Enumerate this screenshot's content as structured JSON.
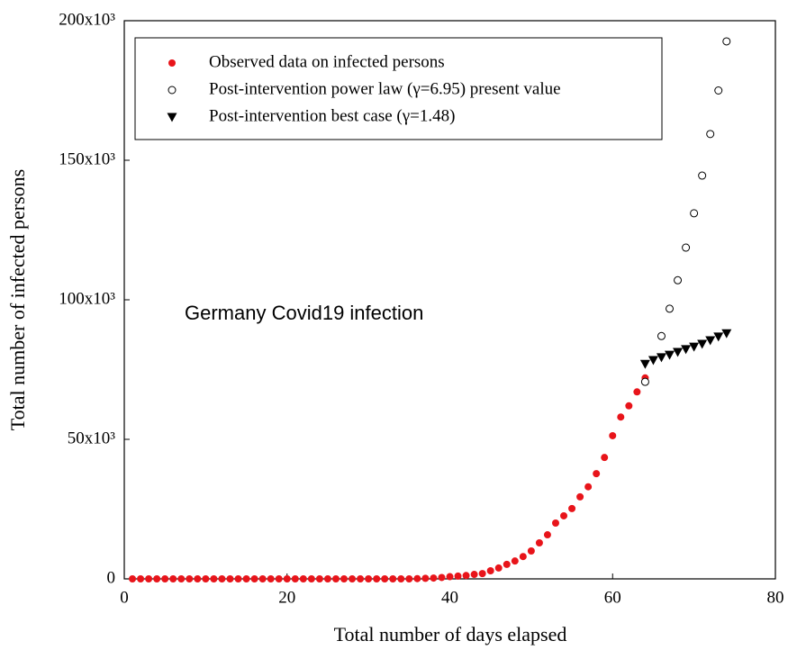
{
  "chart_data": {
    "type": "scatter",
    "xlabel": "Total number of days elapsed",
    "ylabel": "Total number of infected persons",
    "annotation": "Germany Covid19 infection",
    "xlim": [
      0,
      80
    ],
    "xticks": [
      0,
      20,
      40,
      60,
      80
    ],
    "ylim": [
      0,
      200000
    ],
    "yticks": [
      0,
      {
        "value": 50000,
        "label": "50x10³"
      },
      {
        "value": 100000,
        "label": "100x10³"
      },
      {
        "value": 150000,
        "label": "150x10³"
      },
      {
        "value": 200000,
        "label": "200x10³"
      }
    ],
    "legend_loc": "upper left",
    "series": [
      {
        "name": "Observed data on infected persons",
        "color": "#e8141a",
        "marker": "filled-circle",
        "x": [
          1,
          2,
          3,
          4,
          5,
          6,
          7,
          8,
          9,
          10,
          11,
          12,
          13,
          14,
          15,
          16,
          17,
          18,
          19,
          20,
          21,
          22,
          23,
          24,
          25,
          26,
          27,
          28,
          29,
          30,
          31,
          32,
          33,
          34,
          35,
          36,
          37,
          38,
          39,
          40,
          41,
          42,
          43,
          44,
          45,
          46,
          47,
          48,
          49,
          50,
          51,
          52,
          53,
          54,
          55,
          56,
          57,
          58,
          59,
          60,
          61,
          62,
          63,
          64
        ],
        "values": [
          0,
          0,
          0,
          0,
          0,
          0,
          0,
          0,
          0,
          0,
          0,
          0,
          0,
          0,
          0,
          0,
          0,
          0,
          0,
          0,
          0,
          0,
          0,
          0,
          0,
          0,
          0,
          0,
          0,
          0,
          0,
          0,
          0,
          0,
          0,
          100,
          200,
          300,
          500,
          800,
          1000,
          1200,
          1600,
          1900,
          2900,
          3900,
          5200,
          6400,
          8000,
          10000,
          12900,
          15800,
          20000,
          22600,
          25200,
          29400,
          33000,
          37700,
          43500,
          51300,
          58000,
          62000,
          67000,
          72000
        ]
      },
      {
        "name": "Post-intervention power law (γ=6.95) present value",
        "color": "#000000",
        "marker": "open-circle",
        "x": [
          64,
          66,
          67,
          68,
          69,
          70,
          71,
          72,
          73,
          74
        ],
        "values": [
          70600,
          87000,
          96800,
          107000,
          118700,
          131000,
          144500,
          159400,
          175000,
          192600
        ]
      },
      {
        "name": "Post-intervention best case (γ=1.48)",
        "color": "#000000",
        "marker": "triangle-down",
        "x": [
          64,
          65,
          66,
          67,
          68,
          69,
          70,
          71,
          72,
          73,
          74
        ],
        "values": [
          77000,
          78400,
          79400,
          80300,
          81300,
          82300,
          83200,
          84200,
          85500,
          86800,
          88000
        ]
      }
    ]
  }
}
